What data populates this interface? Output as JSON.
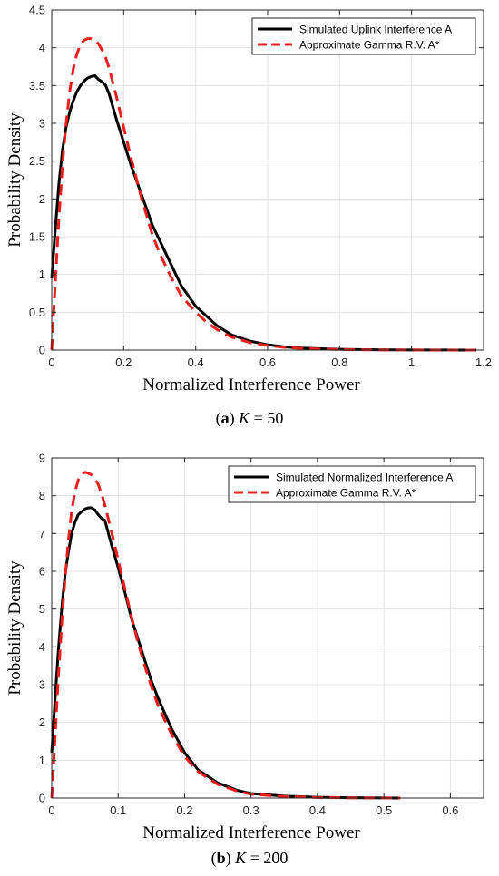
{
  "chart_data": [
    {
      "type": "line",
      "panel": "a",
      "caption_letter": "a",
      "caption_var": "K",
      "caption_value": "= 50",
      "xlabel": "Normalized Interference Power",
      "ylabel": "Probability Density",
      "xlim": [
        0,
        1.2
      ],
      "ylim": [
        0,
        4.5
      ],
      "xticks": [
        0,
        0.2,
        0.4,
        0.6,
        0.8,
        1,
        1.2
      ],
      "xtick_labels": [
        "0",
        "0.2",
        "0.4",
        "0.6",
        "0.8",
        "1",
        "1.2"
      ],
      "yticks": [
        0,
        0.5,
        1,
        1.5,
        2,
        2.5,
        3,
        3.5,
        4,
        4.5
      ],
      "ytick_labels": [
        "0",
        "0.5",
        "1",
        "1.5",
        "2",
        "2.5",
        "3",
        "3.5",
        "4",
        "4.5"
      ],
      "grid": true,
      "legend_position": "top-right",
      "series": [
        {
          "name": "Simulated Uplink Interference  A",
          "color": "#000000",
          "style": "solid",
          "x": [
            0,
            0.01,
            0.02,
            0.03,
            0.04,
            0.05,
            0.06,
            0.07,
            0.08,
            0.09,
            0.1,
            0.11,
            0.12,
            0.13,
            0.14,
            0.15,
            0.16,
            0.18,
            0.2,
            0.22,
            0.25,
            0.28,
            0.3,
            0.33,
            0.36,
            0.4,
            0.43,
            0.46,
            0.5,
            0.55,
            0.6,
            0.65,
            0.7,
            0.8,
            0.9,
            1.0,
            1.1,
            1.18
          ],
          "y": [
            0.95,
            1.6,
            2.2,
            2.65,
            2.95,
            3.15,
            3.3,
            3.42,
            3.5,
            3.56,
            3.6,
            3.62,
            3.63,
            3.58,
            3.55,
            3.5,
            3.38,
            3.05,
            2.75,
            2.45,
            2.05,
            1.65,
            1.45,
            1.15,
            0.85,
            0.58,
            0.45,
            0.32,
            0.2,
            0.12,
            0.07,
            0.04,
            0.025,
            0.01,
            0.005,
            0.002,
            0.001,
            0
          ]
        },
        {
          "name": "Approximate Gamma R.V. A*",
          "color": "#e8201f",
          "style": "dashed",
          "x": [
            0,
            0.01,
            0.02,
            0.03,
            0.04,
            0.05,
            0.06,
            0.07,
            0.08,
            0.09,
            0.1,
            0.11,
            0.12,
            0.13,
            0.14,
            0.15,
            0.16,
            0.18,
            0.2,
            0.22,
            0.25,
            0.28,
            0.3,
            0.33,
            0.36,
            0.4,
            0.43,
            0.46,
            0.5,
            0.55,
            0.6,
            0.65,
            0.7,
            0.8,
            0.9,
            1.0,
            1.1,
            1.18
          ],
          "y": [
            0,
            0.9,
            1.75,
            2.45,
            3.0,
            3.42,
            3.72,
            3.92,
            4.04,
            4.1,
            4.12,
            4.12,
            4.1,
            4.05,
            3.97,
            3.87,
            3.72,
            3.35,
            2.95,
            2.55,
            2.0,
            1.52,
            1.28,
            0.98,
            0.72,
            0.5,
            0.37,
            0.27,
            0.17,
            0.1,
            0.06,
            0.035,
            0.02,
            0.007,
            0.002,
            0.001,
            0,
            0
          ]
        }
      ]
    },
    {
      "type": "line",
      "panel": "b",
      "caption_letter": "b",
      "caption_var": "K",
      "caption_value": "= 200",
      "xlabel": "Normalized Interference Power",
      "ylabel": "Probability Density",
      "xlim": [
        0,
        0.65
      ],
      "ylim": [
        0,
        9
      ],
      "xticks": [
        0,
        0.1,
        0.2,
        0.3,
        0.4,
        0.5,
        0.6
      ],
      "xtick_labels": [
        "0",
        "0.1",
        "0.2",
        "0.3",
        "0.4",
        "0.5",
        "0.6"
      ],
      "yticks": [
        0,
        1,
        2,
        3,
        4,
        5,
        6,
        7,
        8,
        9
      ],
      "ytick_labels": [
        "0",
        "1",
        "2",
        "3",
        "4",
        "5",
        "6",
        "7",
        "8",
        "9"
      ],
      "grid": true,
      "legend_position": "top-right",
      "series": [
        {
          "name": "Simulated Normalized Interference  A",
          "color": "#000000",
          "style": "solid",
          "x": [
            0,
            0.005,
            0.01,
            0.015,
            0.02,
            0.025,
            0.03,
            0.035,
            0.04,
            0.045,
            0.05,
            0.055,
            0.06,
            0.065,
            0.07,
            0.075,
            0.08,
            0.09,
            0.1,
            0.11,
            0.12,
            0.13,
            0.14,
            0.15,
            0.16,
            0.18,
            0.2,
            0.22,
            0.25,
            0.28,
            0.3,
            0.35,
            0.4,
            0.45,
            0.5,
            0.525
          ],
          "y": [
            1.2,
            2.6,
            3.9,
            5.0,
            5.9,
            6.5,
            7.0,
            7.3,
            7.5,
            7.58,
            7.65,
            7.68,
            7.68,
            7.62,
            7.5,
            7.4,
            7.35,
            6.7,
            6.1,
            5.45,
            4.75,
            4.2,
            3.65,
            3.1,
            2.65,
            1.85,
            1.2,
            0.75,
            0.4,
            0.2,
            0.12,
            0.05,
            0.02,
            0.008,
            0.003,
            0
          ]
        },
        {
          "name": "Approximate Gamma R.V. A*",
          "color": "#e8201f",
          "style": "dashed",
          "x": [
            0,
            0.005,
            0.01,
            0.015,
            0.02,
            0.025,
            0.03,
            0.035,
            0.04,
            0.045,
            0.05,
            0.055,
            0.06,
            0.065,
            0.07,
            0.075,
            0.08,
            0.09,
            0.1,
            0.11,
            0.12,
            0.13,
            0.14,
            0.15,
            0.16,
            0.18,
            0.2,
            0.22,
            0.25,
            0.28,
            0.3,
            0.35,
            0.4,
            0.45,
            0.5,
            0.525
          ],
          "y": [
            0,
            1.6,
            3.2,
            4.6,
            5.8,
            6.8,
            7.6,
            8.1,
            8.42,
            8.58,
            8.62,
            8.6,
            8.55,
            8.45,
            8.3,
            8.05,
            7.75,
            7.05,
            6.3,
            5.55,
            4.8,
            4.1,
            3.5,
            2.95,
            2.45,
            1.7,
            1.1,
            0.7,
            0.36,
            0.18,
            0.1,
            0.04,
            0.015,
            0.005,
            0.002,
            0
          ]
        }
      ]
    }
  ]
}
